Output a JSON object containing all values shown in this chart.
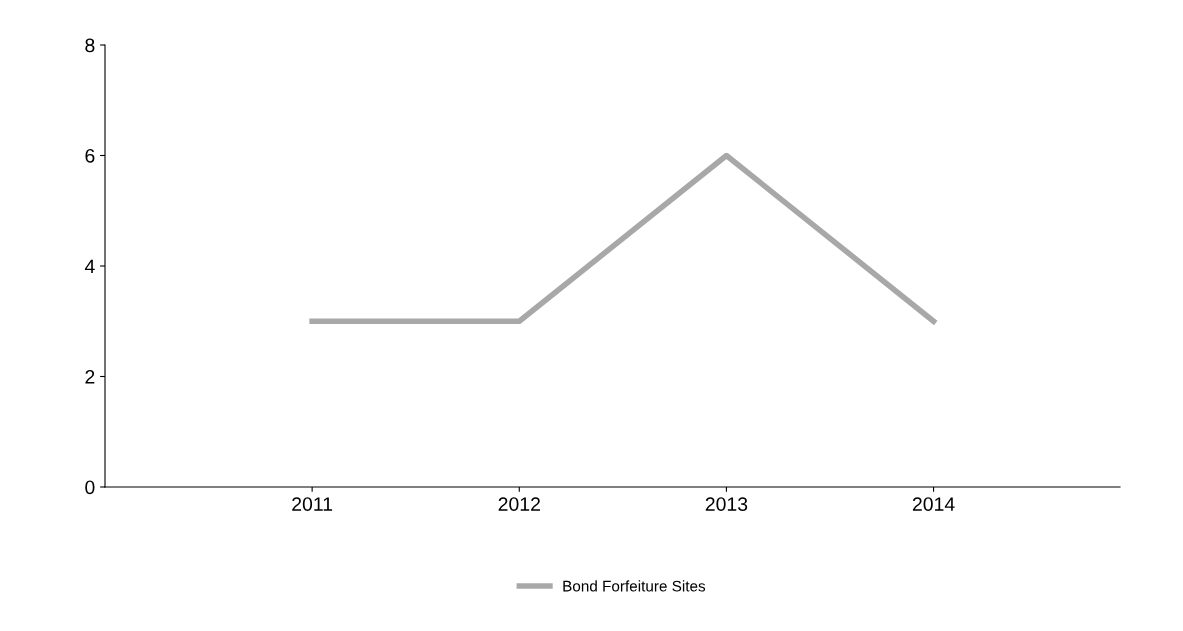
{
  "chart_data": {
    "type": "line",
    "categories": [
      "2011",
      "2012",
      "2013",
      "2014"
    ],
    "series": [
      {
        "name": "Bond Forfeiture Sites",
        "color": "#a8a8a8",
        "values": [
          3,
          3,
          6,
          3
        ]
      }
    ],
    "ylim": [
      0,
      8
    ],
    "yticks": [
      0,
      2,
      4,
      6,
      8
    ],
    "grid": false,
    "legend": "bottom",
    "marker": "none",
    "line_style": "solid"
  }
}
